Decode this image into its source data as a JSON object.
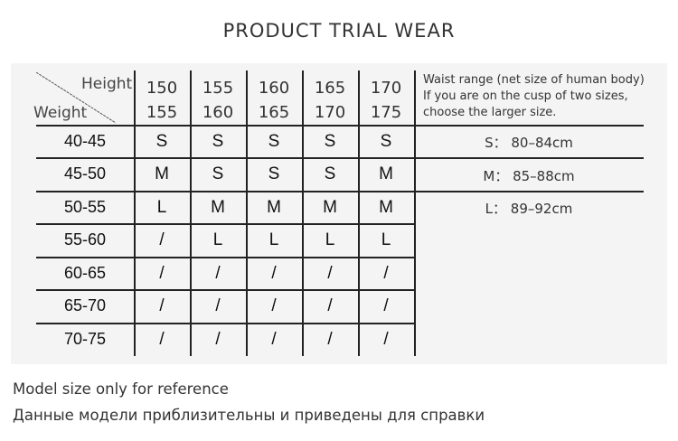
{
  "title": "PRODUCT TRIAL WEAR",
  "table": {
    "corner_top": "Height",
    "corner_bottom": "Weight",
    "heights": [
      {
        "from": "150",
        "to": "155"
      },
      {
        "from": "155",
        "to": "160"
      },
      {
        "from": "160",
        "to": "165"
      },
      {
        "from": "165",
        "to": "170"
      },
      {
        "from": "170",
        "to": "175"
      }
    ],
    "rows": [
      {
        "weight": "40-45",
        "sizes": [
          "S",
          "S",
          "S",
          "S",
          "S"
        ]
      },
      {
        "weight": "45-50",
        "sizes": [
          "M",
          "S",
          "S",
          "S",
          "M"
        ]
      },
      {
        "weight": "50-55",
        "sizes": [
          "L",
          "M",
          "M",
          "M",
          "M"
        ]
      },
      {
        "weight": "55-60",
        "sizes": [
          "/",
          "L",
          "L",
          "L",
          "L"
        ]
      },
      {
        "weight": "60-65",
        "sizes": [
          "/",
          "/",
          "/",
          "/",
          "/"
        ]
      },
      {
        "weight": "65-70",
        "sizes": [
          "/",
          "/",
          "/",
          "/",
          "/"
        ]
      },
      {
        "weight": "70-75",
        "sizes": [
          "/",
          "/",
          "/",
          "/",
          "/"
        ]
      }
    ]
  },
  "waist": {
    "note_lines": [
      "Waist range (net size of human body)",
      "If you are on the cusp of two sizes,",
      "choose the larger size."
    ],
    "ranges": [
      "S： 80–84cm",
      "M： 85–88cm",
      "L： 89–92cm"
    ]
  },
  "footer": {
    "line1": "Model size only for reference",
    "line2": "Данные модели приблизительны и приведены для справки"
  }
}
